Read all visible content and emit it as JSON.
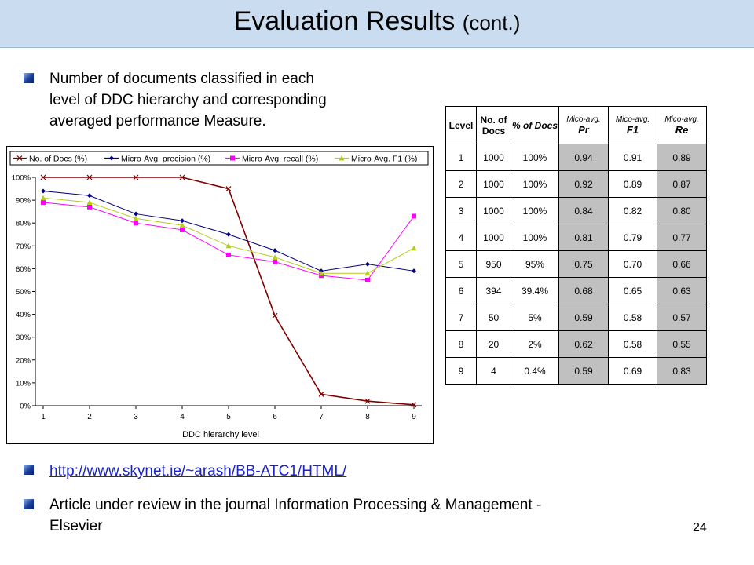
{
  "slide": {
    "title_main": "Evaluation Results",
    "title_suffix": "(cont.)",
    "bullet1_line1": "Number of documents classified in each",
    "bullet1_line2": "level of DDC hierarchy and corresponding",
    "bullet1_line3": "averaged performance Measure.",
    "link": "http://www.skynet.ie/~arash/BB-ATC1/HTML/",
    "bullet3_line1": "Article under review in the journal Information Processing & Management -",
    "bullet3_line2": "Elsevier",
    "page_number": "24"
  },
  "table": {
    "headers": {
      "level": "Level",
      "docs": "No. of Docs",
      "pct": "% of Docs",
      "pr_top": "Mico-avg.",
      "pr_bottom": "Pr",
      "f1_top": "Mico-avg.",
      "f1_bottom": "F1",
      "re_top": "Mico-avg.",
      "re_bottom": "Re"
    },
    "rows": [
      [
        "1",
        "1000",
        "100%",
        "0.94",
        "0.91",
        "0.89"
      ],
      [
        "2",
        "1000",
        "100%",
        "0.92",
        "0.89",
        "0.87"
      ],
      [
        "3",
        "1000",
        "100%",
        "0.84",
        "0.82",
        "0.80"
      ],
      [
        "4",
        "1000",
        "100%",
        "0.81",
        "0.79",
        "0.77"
      ],
      [
        "5",
        "950",
        "95%",
        "0.75",
        "0.70",
        "0.66"
      ],
      [
        "6",
        "394",
        "39.4%",
        "0.68",
        "0.65",
        "0.63"
      ],
      [
        "7",
        "50",
        "5%",
        "0.59",
        "0.58",
        "0.57"
      ],
      [
        "8",
        "20",
        "2%",
        "0.62",
        "0.58",
        "0.55"
      ],
      [
        "9",
        "4",
        "0.4%",
        "0.59",
        "0.69",
        "0.83"
      ]
    ]
  },
  "chart_data": {
    "type": "line",
    "xlabel": "DDC hierarchy level",
    "x": [
      1,
      2,
      3,
      4,
      5,
      6,
      7,
      8,
      9
    ],
    "ylim": [
      0,
      100
    ],
    "yticks": [
      "0%",
      "10%",
      "20%",
      "30%",
      "40%",
      "50%",
      "60%",
      "70%",
      "80%",
      "90%",
      "100%"
    ],
    "grid": false,
    "legend_position": "top",
    "series": [
      {
        "name": "No. of Docs (%)",
        "color": "#800000",
        "marker": "x",
        "values": [
          100,
          100,
          100,
          100,
          95,
          39.4,
          5,
          2,
          0.4
        ]
      },
      {
        "name": "Micro-Avg. precision (%)",
        "color": "#000080",
        "marker": "diamond",
        "values": [
          94,
          92,
          84,
          81,
          75,
          68,
          59,
          62,
          59
        ]
      },
      {
        "name": "Micro-Avg. recall (%)",
        "color": "#ff00ff",
        "marker": "square",
        "values": [
          89,
          87,
          80,
          77,
          66,
          63,
          57,
          55,
          83
        ]
      },
      {
        "name": "Micro-Avg. F1 (%)",
        "color": "#b5cc18",
        "marker": "triangle",
        "values": [
          91,
          89,
          82,
          79,
          70,
          65,
          58,
          58,
          69
        ]
      }
    ]
  }
}
